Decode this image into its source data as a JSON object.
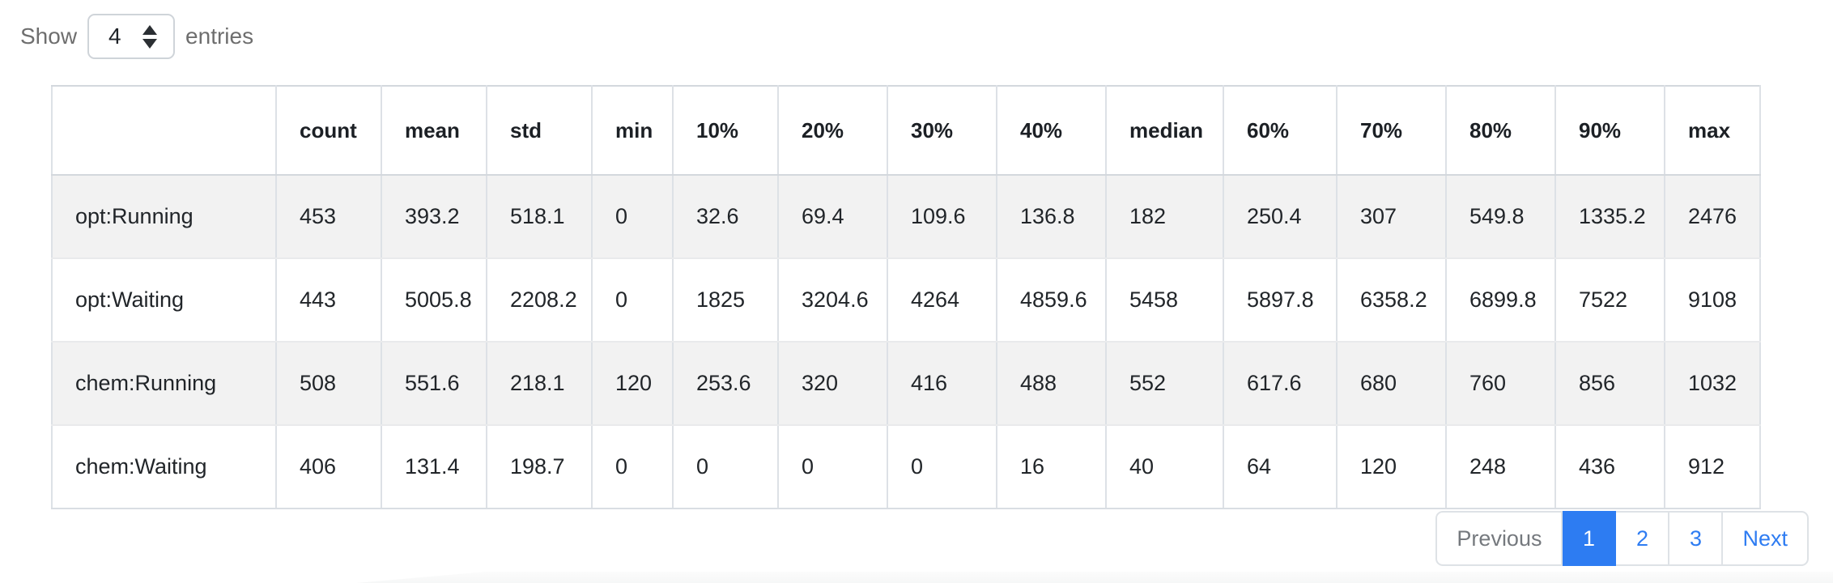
{
  "controls": {
    "show_label": "Show",
    "entries_label": "entries",
    "page_size": "4"
  },
  "table": {
    "columns": [
      "",
      "count",
      "mean",
      "std",
      "min",
      "10%",
      "20%",
      "30%",
      "40%",
      "median",
      "60%",
      "70%",
      "80%",
      "90%",
      "max"
    ],
    "rows": [
      {
        "label": "opt:Running",
        "values": [
          "453",
          "393.2",
          "518.1",
          "0",
          "32.6",
          "69.4",
          "109.6",
          "136.8",
          "182",
          "250.4",
          "307",
          "549.8",
          "1335.2",
          "2476"
        ]
      },
      {
        "label": "opt:Waiting",
        "values": [
          "443",
          "5005.8",
          "2208.2",
          "0",
          "1825",
          "3204.6",
          "4264",
          "4859.6",
          "5458",
          "5897.8",
          "6358.2",
          "6899.8",
          "7522",
          "9108"
        ]
      },
      {
        "label": "chem:Running",
        "values": [
          "508",
          "551.6",
          "218.1",
          "120",
          "253.6",
          "320",
          "416",
          "488",
          "552",
          "617.6",
          "680",
          "760",
          "856",
          "1032"
        ]
      },
      {
        "label": "chem:Waiting",
        "values": [
          "406",
          "131.4",
          "198.7",
          "0",
          "0",
          "0",
          "0",
          "16",
          "40",
          "64",
          "120",
          "248",
          "436",
          "912"
        ]
      }
    ]
  },
  "pagination": {
    "previous_label": "Previous",
    "pages": [
      "1",
      "2",
      "3"
    ],
    "active_page": "1",
    "next_label": "Next"
  },
  "colors": {
    "accent_blue": "#2d7cf2",
    "stripe_gray": "#f2f2f2",
    "border_gray": "#dee2e6",
    "muted_text": "#6e6e6e"
  }
}
